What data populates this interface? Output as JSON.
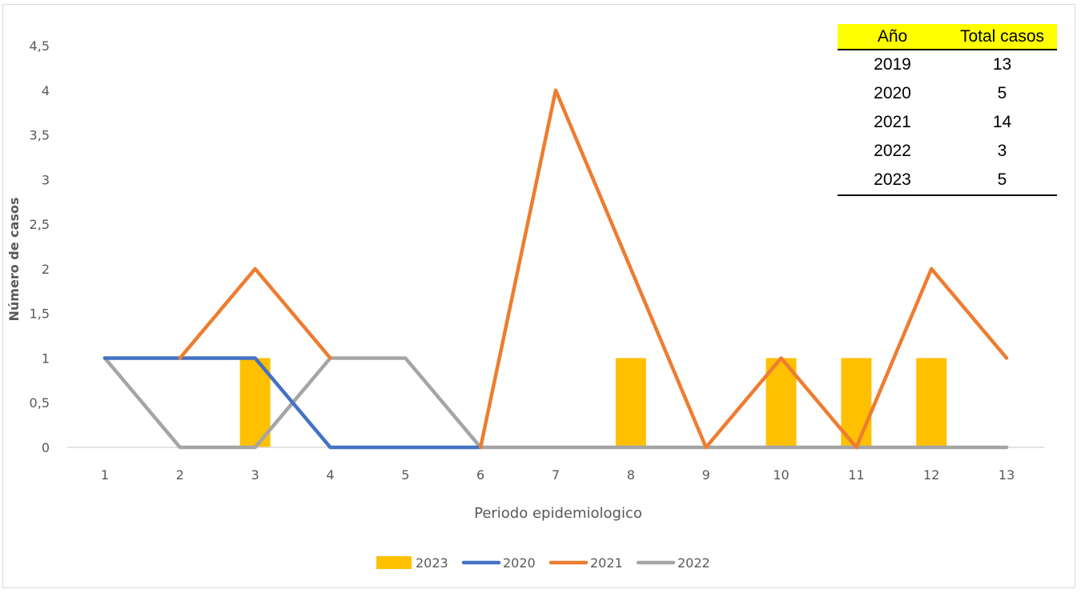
{
  "chart_data": {
    "type": "bar+line",
    "xlabel": "Periodo epidemiologico",
    "ylabel": "Número de casos",
    "ylim": [
      0,
      4.5
    ],
    "yticks": [
      "0",
      "0,5",
      "1",
      "1,5",
      "2",
      "2,5",
      "3",
      "3,5",
      "4",
      "4,5"
    ],
    "ytick_values": [
      0,
      0.5,
      1,
      1.5,
      2,
      2.5,
      3,
      3.5,
      4,
      4.5
    ],
    "categories": [
      "1",
      "2",
      "3",
      "4",
      "5",
      "6",
      "7",
      "8",
      "9",
      "10",
      "11",
      "12",
      "13"
    ],
    "bar_series": {
      "name": "2023",
      "color": "#ffc000",
      "values": [
        0,
        0,
        1,
        0,
        0,
        0,
        0,
        1,
        0,
        1,
        1,
        1,
        0
      ]
    },
    "line_series": [
      {
        "name": "2020",
        "color": "#4472c4",
        "values": [
          1,
          1,
          1,
          0,
          0,
          0,
          null,
          null,
          null,
          null,
          null,
          null,
          null
        ]
      },
      {
        "name": "2021",
        "color": "#ed7d31",
        "values": [
          null,
          1,
          2,
          1,
          null,
          0,
          4,
          2,
          0,
          1,
          0,
          2,
          1
        ]
      },
      {
        "name": "2022",
        "color": "#a5a5a5",
        "values": [
          1,
          0,
          0,
          1,
          1,
          0,
          0,
          0,
          0,
          0,
          0,
          0,
          0
        ]
      }
    ],
    "legend": [
      "2023",
      "2020",
      "2021",
      "2022"
    ],
    "legend_position": "bottom",
    "grid": false
  },
  "summary_table": {
    "headers": [
      "Año",
      "Total casos"
    ],
    "rows": [
      [
        "2019",
        "13"
      ],
      [
        "2020",
        "5"
      ],
      [
        "2021",
        "14"
      ],
      [
        "2022",
        "3"
      ],
      [
        "2023",
        "5"
      ]
    ]
  }
}
